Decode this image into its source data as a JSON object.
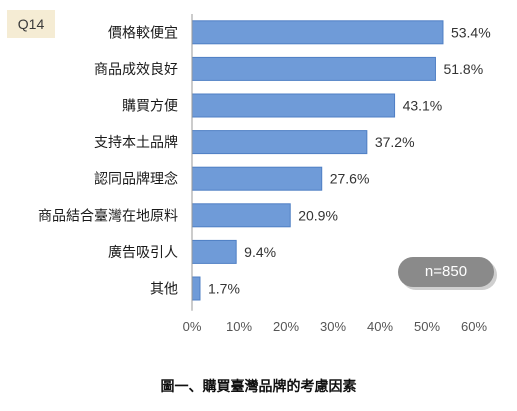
{
  "badge": "Q14",
  "sample": "n=850",
  "caption": "圖一、購買臺灣品牌的考慮因素",
  "colors": {
    "bar": "#6f9bd8",
    "bar_stroke": "#4f7fc4",
    "axis": "#9a9a9a"
  },
  "chart_data": {
    "type": "bar",
    "orientation": "horizontal",
    "categories": [
      "價格較便宜",
      "商品成效良好",
      "購買方便",
      "支持本土品牌",
      "認同品牌理念",
      "商品結合臺灣在地原料",
      "廣告吸引人",
      "其他"
    ],
    "values": [
      53.4,
      51.8,
      43.1,
      37.2,
      27.6,
      20.9,
      9.4,
      1.7
    ],
    "data_labels": [
      "53.4%",
      "51.8%",
      "43.1%",
      "37.2%",
      "27.6%",
      "20.9%",
      "9.4%",
      "1.7%"
    ],
    "xlim": [
      0,
      60
    ],
    "x_ticks": [
      0,
      10,
      20,
      30,
      40,
      50,
      60
    ],
    "x_tick_labels": [
      "0%",
      "10%",
      "20%",
      "30%",
      "40%",
      "50%",
      "60%"
    ],
    "grid": false
  }
}
